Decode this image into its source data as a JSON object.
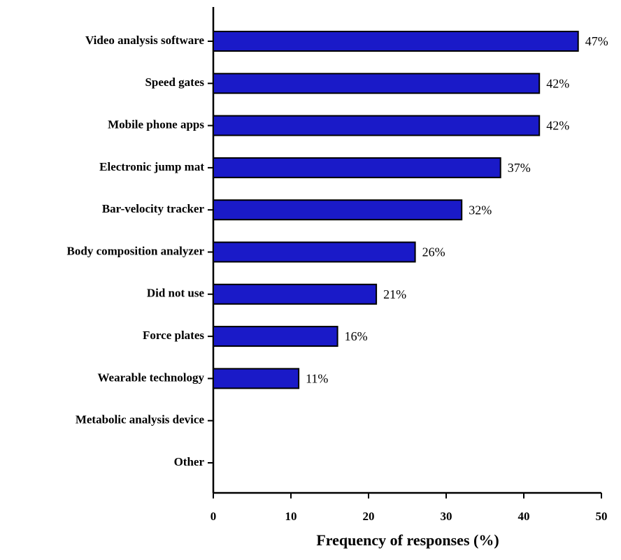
{
  "chart_data": {
    "type": "hbar",
    "xlabel": "Frequency of responses (%)",
    "categories": [
      "Video analysis software",
      "Speed gates",
      "Mobile phone apps",
      "Electronic jump mat",
      "Bar-velocity tracker",
      "Body composition analyzer",
      "Did not use",
      "Force plates",
      "Wearable technology",
      "Metabolic analysis device",
      "Other"
    ],
    "values": [
      47,
      42,
      42,
      37,
      32,
      26,
      21,
      16,
      11,
      0,
      0
    ],
    "value_labels": [
      "47%",
      "42%",
      "42%",
      "37%",
      "32%",
      "26%",
      "21%",
      "16%",
      "11%",
      null,
      null
    ],
    "color": "#1a1ac8",
    "xlim": [
      0,
      50
    ],
    "xticks": [
      0,
      10,
      20,
      30,
      40,
      50
    ],
    "grid": false
  }
}
